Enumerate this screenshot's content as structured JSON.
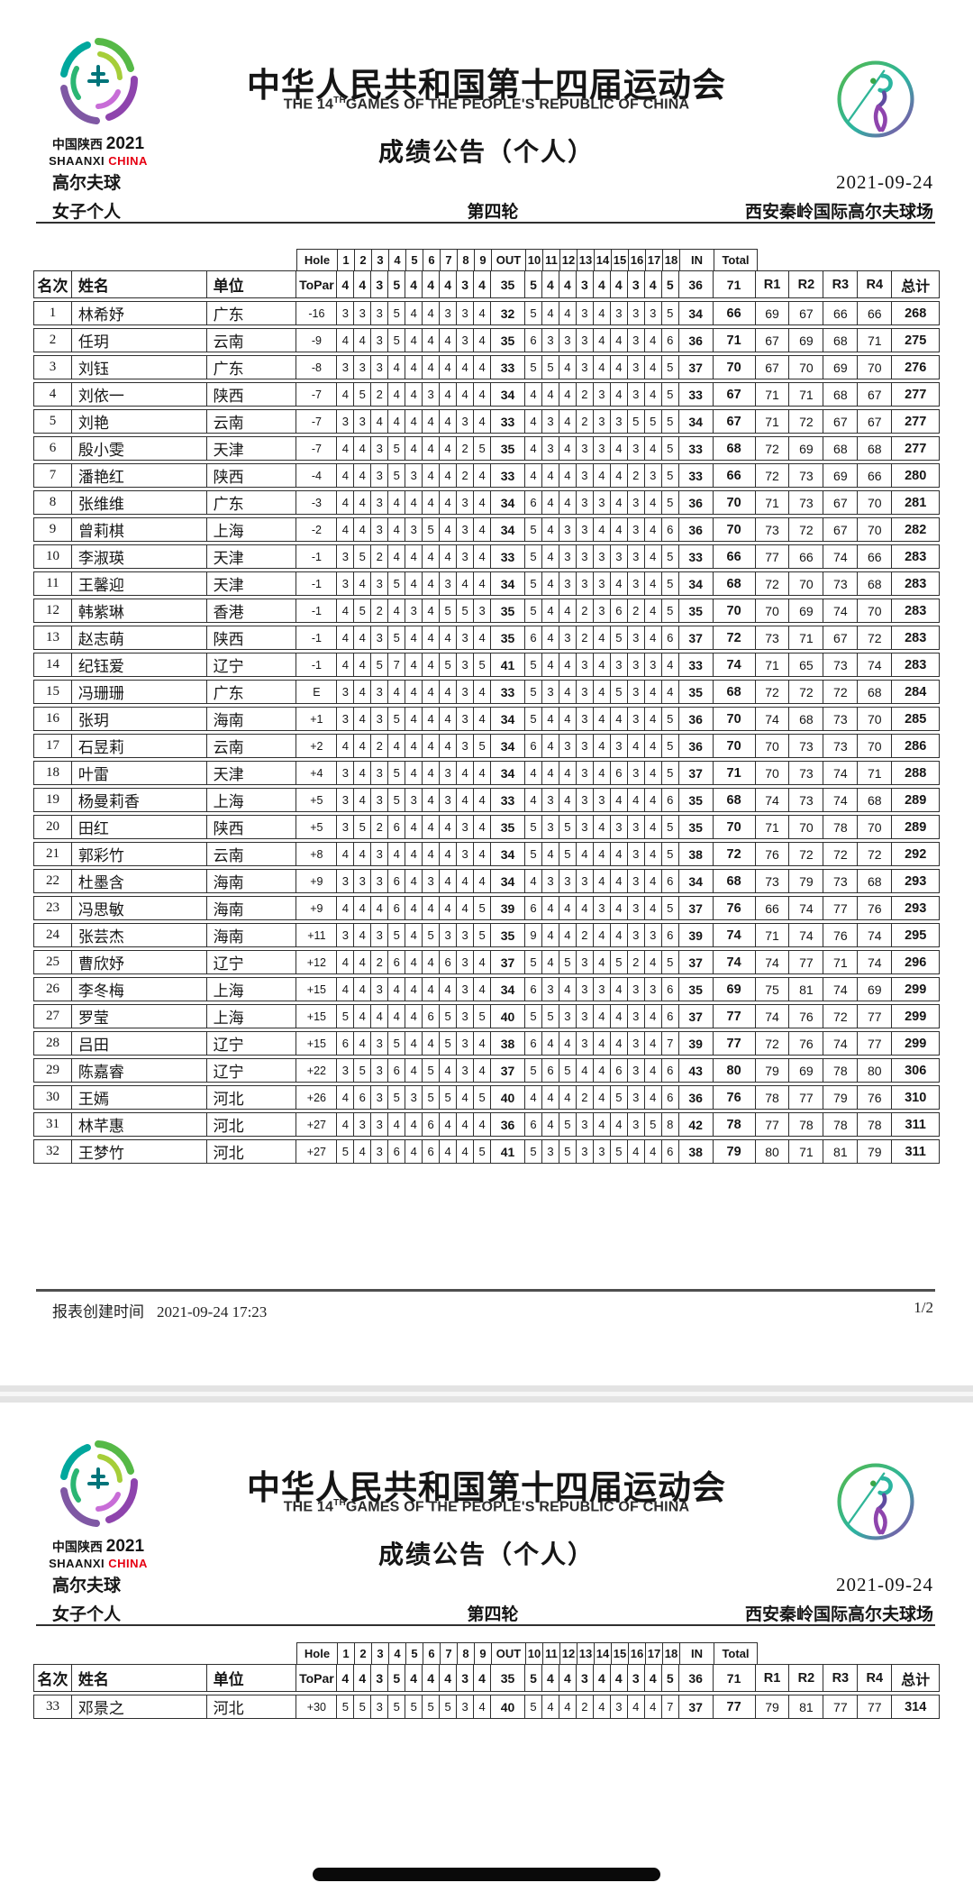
{
  "doc": {
    "title_cn": "中华人民共和国第十四届运动会",
    "title_en": {
      "pre": "THE 14",
      "sup": "TH",
      "rest": "GAMES OF THE PEOPLE'S REPUBLIC OF CHINA"
    },
    "bulletin": "成绩公告（个人）",
    "date": "2021-09-24",
    "sport": "高尔夫球",
    "event": "女子个人",
    "round": "第四轮",
    "venue": "西安秦岭国际高尔夫球场",
    "emblem": {
      "region_cn": "中国陕西",
      "year": "2021",
      "region_en": "SHAANXI",
      "country_en": "CHINA"
    },
    "accent_red": "#e60012",
    "picto_green": "#56b947",
    "picto_purple": "#8e44ad"
  },
  "table": {
    "hole_label": "Hole",
    "to_par_label": "ToPar",
    "col_rank": "名次",
    "col_name": "姓名",
    "col_unit": "单位",
    "out_label": "OUT",
    "in_label": "IN",
    "total_label": "Total",
    "round_labels": [
      "R1",
      "R2",
      "R3",
      "R4"
    ],
    "col_grand": "总计",
    "hole_numbers": [
      1,
      2,
      3,
      4,
      5,
      6,
      7,
      8,
      9,
      10,
      11,
      12,
      13,
      14,
      15,
      16,
      17,
      18
    ],
    "par": {
      "holes_out": [
        4,
        4,
        3,
        5,
        4,
        4,
        4,
        3,
        4
      ],
      "out": "35",
      "holes_in": [
        5,
        4,
        4,
        3,
        4,
        4,
        3,
        4,
        5
      ],
      "in": "36",
      "total": "71"
    }
  },
  "players_page1": [
    {
      "rank": "1",
      "name": "林希妤",
      "unit": "广东",
      "to_par": "-16",
      "holes_out": [
        3,
        3,
        3,
        5,
        4,
        4,
        3,
        3,
        4
      ],
      "out": "32",
      "holes_in": [
        5,
        4,
        4,
        3,
        4,
        3,
        3,
        3,
        5
      ],
      "in": "34",
      "total": "66",
      "rounds": [
        "69",
        "67",
        "66",
        "66"
      ],
      "grand": "268"
    },
    {
      "rank": "2",
      "name": "任玥",
      "unit": "云南",
      "to_par": "-9",
      "holes_out": [
        4,
        4,
        3,
        5,
        4,
        4,
        4,
        3,
        4
      ],
      "out": "35",
      "holes_in": [
        6,
        3,
        3,
        3,
        4,
        4,
        3,
        4,
        6
      ],
      "in": "36",
      "total": "71",
      "rounds": [
        "67",
        "69",
        "68",
        "71"
      ],
      "grand": "275"
    },
    {
      "rank": "3",
      "name": "刘钰",
      "unit": "广东",
      "to_par": "-8",
      "holes_out": [
        3,
        3,
        3,
        4,
        4,
        4,
        4,
        4,
        4
      ],
      "out": "33",
      "holes_in": [
        5,
        5,
        4,
        3,
        4,
        4,
        3,
        4,
        5
      ],
      "in": "37",
      "total": "70",
      "rounds": [
        "67",
        "70",
        "69",
        "70"
      ],
      "grand": "276"
    },
    {
      "rank": "4",
      "name": "刘依一",
      "unit": "陕西",
      "to_par": "-7",
      "holes_out": [
        4,
        5,
        2,
        4,
        4,
        3,
        4,
        4,
        4
      ],
      "out": "34",
      "holes_in": [
        4,
        4,
        4,
        2,
        3,
        4,
        3,
        4,
        5
      ],
      "in": "33",
      "total": "67",
      "rounds": [
        "71",
        "71",
        "68",
        "67"
      ],
      "grand": "277"
    },
    {
      "rank": "5",
      "name": "刘艳",
      "unit": "云南",
      "to_par": "-7",
      "holes_out": [
        3,
        3,
        4,
        4,
        4,
        4,
        4,
        3,
        4
      ],
      "out": "33",
      "holes_in": [
        4,
        3,
        4,
        2,
        3,
        3,
        5,
        5,
        5
      ],
      "in": "34",
      "total": "67",
      "rounds": [
        "71",
        "72",
        "67",
        "67"
      ],
      "grand": "277"
    },
    {
      "rank": "6",
      "name": "殷小雯",
      "unit": "天津",
      "to_par": "-7",
      "holes_out": [
        4,
        4,
        3,
        5,
        4,
        4,
        4,
        2,
        5
      ],
      "out": "35",
      "holes_in": [
        4,
        3,
        4,
        3,
        3,
        4,
        3,
        4,
        5
      ],
      "in": "33",
      "total": "68",
      "rounds": [
        "72",
        "69",
        "68",
        "68"
      ],
      "grand": "277"
    },
    {
      "rank": "7",
      "name": "潘艳红",
      "unit": "陕西",
      "to_par": "-4",
      "holes_out": [
        4,
        4,
        3,
        5,
        3,
        4,
        4,
        2,
        4
      ],
      "out": "33",
      "holes_in": [
        4,
        4,
        4,
        3,
        4,
        4,
        2,
        3,
        5
      ],
      "in": "33",
      "total": "66",
      "rounds": [
        "72",
        "73",
        "69",
        "66"
      ],
      "grand": "280"
    },
    {
      "rank": "8",
      "name": "张维维",
      "unit": "广东",
      "to_par": "-3",
      "holes_out": [
        4,
        4,
        3,
        4,
        4,
        4,
        4,
        3,
        4
      ],
      "out": "34",
      "holes_in": [
        6,
        4,
        4,
        3,
        3,
        4,
        3,
        4,
        5
      ],
      "in": "36",
      "total": "70",
      "rounds": [
        "71",
        "73",
        "67",
        "70"
      ],
      "grand": "281"
    },
    {
      "rank": "9",
      "name": "曾莉棋",
      "unit": "上海",
      "to_par": "-2",
      "holes_out": [
        4,
        4,
        3,
        4,
        3,
        5,
        4,
        3,
        4
      ],
      "out": "34",
      "holes_in": [
        5,
        4,
        3,
        3,
        4,
        4,
        3,
        4,
        6
      ],
      "in": "36",
      "total": "70",
      "rounds": [
        "73",
        "72",
        "67",
        "70"
      ],
      "grand": "282"
    },
    {
      "rank": "10",
      "name": "李淑瑛",
      "unit": "天津",
      "to_par": "-1",
      "holes_out": [
        3,
        5,
        2,
        4,
        4,
        4,
        4,
        3,
        4
      ],
      "out": "33",
      "holes_in": [
        5,
        4,
        3,
        3,
        3,
        3,
        3,
        4,
        5
      ],
      "in": "33",
      "total": "66",
      "rounds": [
        "77",
        "66",
        "74",
        "66"
      ],
      "grand": "283"
    },
    {
      "rank": "11",
      "name": "王馨迎",
      "unit": "天津",
      "to_par": "-1",
      "holes_out": [
        3,
        4,
        3,
        5,
        4,
        4,
        3,
        4,
        4
      ],
      "out": "34",
      "holes_in": [
        5,
        4,
        3,
        3,
        3,
        4,
        3,
        4,
        5
      ],
      "in": "34",
      "total": "68",
      "rounds": [
        "72",
        "70",
        "73",
        "68"
      ],
      "grand": "283"
    },
    {
      "rank": "12",
      "name": "韩紫琳",
      "unit": "香港",
      "to_par": "-1",
      "holes_out": [
        4,
        5,
        2,
        4,
        3,
        4,
        5,
        5,
        3
      ],
      "out": "35",
      "holes_in": [
        5,
        4,
        4,
        2,
        3,
        6,
        2,
        4,
        5
      ],
      "in": "35",
      "total": "70",
      "rounds": [
        "70",
        "69",
        "74",
        "70"
      ],
      "grand": "283"
    },
    {
      "rank": "13",
      "name": "赵志萌",
      "unit": "陕西",
      "to_par": "-1",
      "holes_out": [
        4,
        4,
        3,
        5,
        4,
        4,
        4,
        3,
        4
      ],
      "out": "35",
      "holes_in": [
        6,
        4,
        3,
        2,
        4,
        5,
        3,
        4,
        6
      ],
      "in": "37",
      "total": "72",
      "rounds": [
        "73",
        "71",
        "67",
        "72"
      ],
      "grand": "283"
    },
    {
      "rank": "14",
      "name": "纪钰爱",
      "unit": "辽宁",
      "to_par": "-1",
      "holes_out": [
        4,
        4,
        5,
        7,
        4,
        4,
        5,
        3,
        5
      ],
      "out": "41",
      "holes_in": [
        5,
        4,
        4,
        3,
        4,
        3,
        3,
        3,
        4
      ],
      "in": "33",
      "total": "74",
      "rounds": [
        "71",
        "65",
        "73",
        "74"
      ],
      "grand": "283"
    },
    {
      "rank": "15",
      "name": "冯珊珊",
      "unit": "广东",
      "to_par": "E",
      "holes_out": [
        3,
        4,
        3,
        4,
        4,
        4,
        4,
        3,
        4
      ],
      "out": "33",
      "holes_in": [
        5,
        3,
        4,
        3,
        4,
        5,
        3,
        4,
        4
      ],
      "in": "35",
      "total": "68",
      "rounds": [
        "72",
        "72",
        "72",
        "68"
      ],
      "grand": "284"
    },
    {
      "rank": "16",
      "name": "张玥",
      "unit": "海南",
      "to_par": "+1",
      "holes_out": [
        3,
        4,
        3,
        5,
        4,
        4,
        4,
        3,
        4
      ],
      "out": "34",
      "holes_in": [
        5,
        4,
        4,
        3,
        4,
        4,
        3,
        4,
        5
      ],
      "in": "36",
      "total": "70",
      "rounds": [
        "74",
        "68",
        "73",
        "70"
      ],
      "grand": "285"
    },
    {
      "rank": "17",
      "name": "石昱莉",
      "unit": "云南",
      "to_par": "+2",
      "holes_out": [
        4,
        4,
        2,
        4,
        4,
        4,
        4,
        3,
        5
      ],
      "out": "34",
      "holes_in": [
        6,
        4,
        3,
        3,
        4,
        3,
        4,
        4,
        5
      ],
      "in": "36",
      "total": "70",
      "rounds": [
        "70",
        "73",
        "73",
        "70"
      ],
      "grand": "286"
    },
    {
      "rank": "18",
      "name": "叶雷",
      "unit": "天津",
      "to_par": "+4",
      "holes_out": [
        3,
        4,
        3,
        5,
        4,
        4,
        3,
        4,
        4
      ],
      "out": "34",
      "holes_in": [
        4,
        4,
        4,
        3,
        4,
        6,
        3,
        4,
        5
      ],
      "in": "37",
      "total": "71",
      "rounds": [
        "70",
        "73",
        "74",
        "71"
      ],
      "grand": "288"
    },
    {
      "rank": "19",
      "name": "杨曼莉香",
      "unit": "上海",
      "to_par": "+5",
      "holes_out": [
        3,
        4,
        3,
        5,
        3,
        4,
        3,
        4,
        4
      ],
      "out": "33",
      "holes_in": [
        4,
        3,
        4,
        3,
        3,
        4,
        4,
        4,
        6
      ],
      "in": "35",
      "total": "68",
      "rounds": [
        "74",
        "73",
        "74",
        "68"
      ],
      "grand": "289"
    },
    {
      "rank": "20",
      "name": "田红",
      "unit": "陕西",
      "to_par": "+5",
      "holes_out": [
        3,
        5,
        2,
        6,
        4,
        4,
        4,
        3,
        4
      ],
      "out": "35",
      "holes_in": [
        5,
        3,
        5,
        3,
        4,
        3,
        3,
        4,
        5
      ],
      "in": "35",
      "total": "70",
      "rounds": [
        "71",
        "70",
        "78",
        "70"
      ],
      "grand": "289"
    },
    {
      "rank": "21",
      "name": "郭彩竹",
      "unit": "云南",
      "to_par": "+8",
      "holes_out": [
        4,
        4,
        3,
        4,
        4,
        4,
        4,
        3,
        4
      ],
      "out": "34",
      "holes_in": [
        5,
        4,
        5,
        4,
        4,
        4,
        3,
        4,
        5
      ],
      "in": "38",
      "total": "72",
      "rounds": [
        "76",
        "72",
        "72",
        "72"
      ],
      "grand": "292"
    },
    {
      "rank": "22",
      "name": "杜墨含",
      "unit": "海南",
      "to_par": "+9",
      "holes_out": [
        3,
        3,
        3,
        6,
        4,
        3,
        4,
        4,
        4
      ],
      "out": "34",
      "holes_in": [
        4,
        3,
        3,
        3,
        4,
        4,
        3,
        4,
        6
      ],
      "in": "34",
      "total": "68",
      "rounds": [
        "73",
        "79",
        "73",
        "68"
      ],
      "grand": "293"
    },
    {
      "rank": "23",
      "name": "冯思敏",
      "unit": "海南",
      "to_par": "+9",
      "holes_out": [
        4,
        4,
        4,
        6,
        4,
        4,
        4,
        4,
        5
      ],
      "out": "39",
      "holes_in": [
        6,
        4,
        4,
        4,
        3,
        4,
        3,
        4,
        5
      ],
      "in": "37",
      "total": "76",
      "rounds": [
        "66",
        "74",
        "77",
        "76"
      ],
      "grand": "293"
    },
    {
      "rank": "24",
      "name": "张芸杰",
      "unit": "海南",
      "to_par": "+11",
      "holes_out": [
        3,
        4,
        3,
        5,
        4,
        5,
        3,
        3,
        5
      ],
      "out": "35",
      "holes_in": [
        9,
        4,
        4,
        2,
        4,
        4,
        3,
        3,
        6
      ],
      "in": "39",
      "total": "74",
      "rounds": [
        "71",
        "74",
        "76",
        "74"
      ],
      "grand": "295"
    },
    {
      "rank": "25",
      "name": "曹欣妤",
      "unit": "辽宁",
      "to_par": "+12",
      "holes_out": [
        4,
        4,
        2,
        6,
        4,
        4,
        6,
        3,
        4
      ],
      "out": "37",
      "holes_in": [
        5,
        4,
        5,
        3,
        4,
        5,
        2,
        4,
        5
      ],
      "in": "37",
      "total": "74",
      "rounds": [
        "74",
        "77",
        "71",
        "74"
      ],
      "grand": "296"
    },
    {
      "rank": "26",
      "name": "李冬梅",
      "unit": "上海",
      "to_par": "+15",
      "holes_out": [
        4,
        4,
        3,
        4,
        4,
        4,
        4,
        3,
        4
      ],
      "out": "34",
      "holes_in": [
        6,
        3,
        4,
        3,
        3,
        4,
        3,
        3,
        6
      ],
      "in": "35",
      "total": "69",
      "rounds": [
        "75",
        "81",
        "74",
        "69"
      ],
      "grand": "299"
    },
    {
      "rank": "27",
      "name": "罗莹",
      "unit": "上海",
      "to_par": "+15",
      "holes_out": [
        5,
        4,
        4,
        4,
        4,
        6,
        5,
        3,
        5
      ],
      "out": "40",
      "holes_in": [
        5,
        5,
        3,
        3,
        4,
        4,
        3,
        4,
        6
      ],
      "in": "37",
      "total": "77",
      "rounds": [
        "74",
        "76",
        "72",
        "77"
      ],
      "grand": "299"
    },
    {
      "rank": "28",
      "name": "吕田",
      "unit": "辽宁",
      "to_par": "+15",
      "holes_out": [
        6,
        4,
        3,
        5,
        4,
        4,
        5,
        3,
        4
      ],
      "out": "38",
      "holes_in": [
        6,
        4,
        4,
        3,
        4,
        4,
        3,
        4,
        7
      ],
      "in": "39",
      "total": "77",
      "rounds": [
        "72",
        "76",
        "74",
        "77"
      ],
      "grand": "299"
    },
    {
      "rank": "29",
      "name": "陈嘉睿",
      "unit": "辽宁",
      "to_par": "+22",
      "holes_out": [
        3,
        5,
        3,
        6,
        4,
        5,
        4,
        3,
        4
      ],
      "out": "37",
      "holes_in": [
        5,
        6,
        5,
        4,
        4,
        6,
        3,
        4,
        6
      ],
      "in": "43",
      "total": "80",
      "rounds": [
        "79",
        "69",
        "78",
        "80"
      ],
      "grand": "306"
    },
    {
      "rank": "30",
      "name": "王嫣",
      "unit": "河北",
      "to_par": "+26",
      "holes_out": [
        4,
        6,
        3,
        5,
        3,
        5,
        5,
        4,
        5
      ],
      "out": "40",
      "holes_in": [
        4,
        4,
        4,
        2,
        4,
        5,
        3,
        4,
        6
      ],
      "in": "36",
      "total": "76",
      "rounds": [
        "78",
        "77",
        "79",
        "76"
      ],
      "grand": "310"
    },
    {
      "rank": "31",
      "name": "林芊惠",
      "unit": "河北",
      "to_par": "+27",
      "holes_out": [
        4,
        3,
        3,
        4,
        4,
        6,
        4,
        4,
        4
      ],
      "out": "36",
      "holes_in": [
        6,
        4,
        5,
        3,
        4,
        4,
        3,
        5,
        8
      ],
      "in": "42",
      "total": "78",
      "rounds": [
        "77",
        "78",
        "78",
        "78"
      ],
      "grand": "311"
    },
    {
      "rank": "32",
      "name": "王梦竹",
      "unit": "河北",
      "to_par": "+27",
      "holes_out": [
        5,
        4,
        3,
        6,
        4,
        6,
        4,
        4,
        5
      ],
      "out": "41",
      "holes_in": [
        5,
        3,
        5,
        3,
        3,
        5,
        4,
        4,
        6
      ],
      "in": "38",
      "total": "79",
      "rounds": [
        "80",
        "71",
        "81",
        "79"
      ],
      "grand": "311"
    }
  ],
  "players_page2": [
    {
      "rank": "33",
      "name": "邓景之",
      "unit": "河北",
      "to_par": "+30",
      "holes_out": [
        5,
        5,
        3,
        5,
        5,
        5,
        5,
        3,
        4
      ],
      "out": "40",
      "holes_in": [
        5,
        4,
        4,
        2,
        4,
        3,
        4,
        4,
        7
      ],
      "in": "37",
      "total": "77",
      "rounds": [
        "79",
        "81",
        "77",
        "77"
      ],
      "grand": "314"
    }
  ],
  "footer": {
    "label": "报表创建时间",
    "time": "2021-09-24 17:23",
    "page": "1/2"
  }
}
